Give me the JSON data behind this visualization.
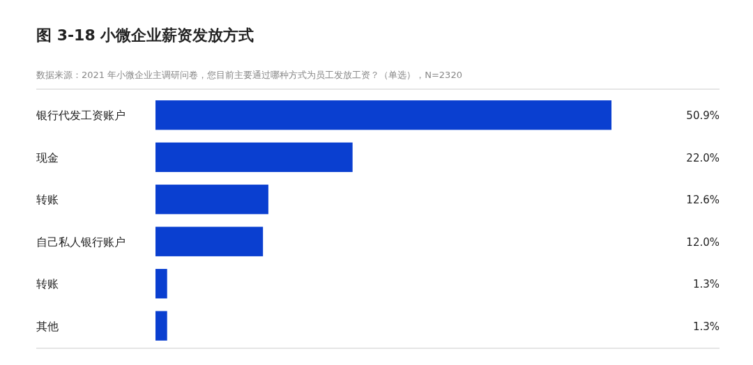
{
  "chart_data": {
    "type": "bar",
    "orientation": "horizontal",
    "title": "图 3-18  小微企业薪资发放方式",
    "subtitle": "数据来源：2021 年小微企业主调研问卷，您目前主要通过哪种方式为员工发放工资？（单选），N=2320",
    "categories": [
      "银行代发工资账户",
      "现金",
      "转账",
      "自己私人银行账户",
      "转账",
      "其他"
    ],
    "values": [
      50.9,
      22.0,
      12.6,
      12.0,
      1.3,
      1.3
    ],
    "value_labels": [
      "50.9%",
      "22.0%",
      "12.6%",
      "12.0%",
      "1.3%",
      "1.3%"
    ],
    "color": "#0a3fd0"
  }
}
